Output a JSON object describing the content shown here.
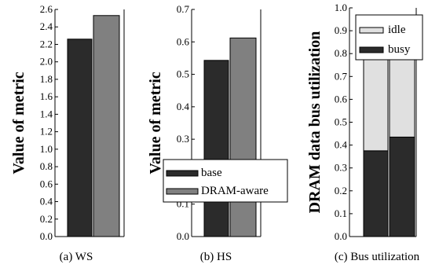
{
  "chart_data": [
    {
      "type": "bar",
      "caption": "(a) WS",
      "ylabel": "Value of metric",
      "ylim": [
        0,
        2.6
      ],
      "yticks": [
        "0.0",
        "0.2",
        "0.4",
        "0.6",
        "0.8",
        "1.0",
        "1.2",
        "1.4",
        "1.6",
        "1.8",
        "2.0",
        "2.2",
        "2.4",
        "2.6"
      ],
      "grid": false,
      "series": [
        {
          "name": "base",
          "color": "#2b2b2b",
          "values": [
            2.26
          ]
        },
        {
          "name": "DRAM-aware",
          "color": "#808080",
          "values": [
            2.53
          ]
        }
      ]
    },
    {
      "type": "bar",
      "caption": "(b) HS",
      "ylabel": "Value of metric",
      "ylim": [
        0,
        0.7
      ],
      "yticks": [
        "0.0",
        "0.1",
        "0.2",
        "0.3",
        "0.4",
        "0.5",
        "0.6",
        "0.7"
      ],
      "grid": false,
      "legend_position": "bottom-right",
      "series": [
        {
          "name": "base",
          "color": "#2b2b2b",
          "values": [
            0.543
          ]
        },
        {
          "name": "DRAM-aware",
          "color": "#808080",
          "values": [
            0.612
          ]
        }
      ]
    },
    {
      "type": "bar",
      "stacked": true,
      "caption": "(c) Bus utilization",
      "ylabel": "DRAM data bus utilization",
      "ylim": [
        0,
        1.0
      ],
      "yticks": [
        "0.0",
        "0.1",
        "0.2",
        "0.3",
        "0.4",
        "0.5",
        "0.6",
        "0.7",
        "0.8",
        "0.9",
        "1.0"
      ],
      "grid": false,
      "legend_position": "top-right",
      "series": [
        {
          "name": "busy",
          "color": "#2b2b2b",
          "values": [
            0.375,
            0.435
          ]
        },
        {
          "name": "idle",
          "color": "#e0e0e0",
          "values": [
            0.585,
            0.525
          ]
        }
      ]
    }
  ]
}
